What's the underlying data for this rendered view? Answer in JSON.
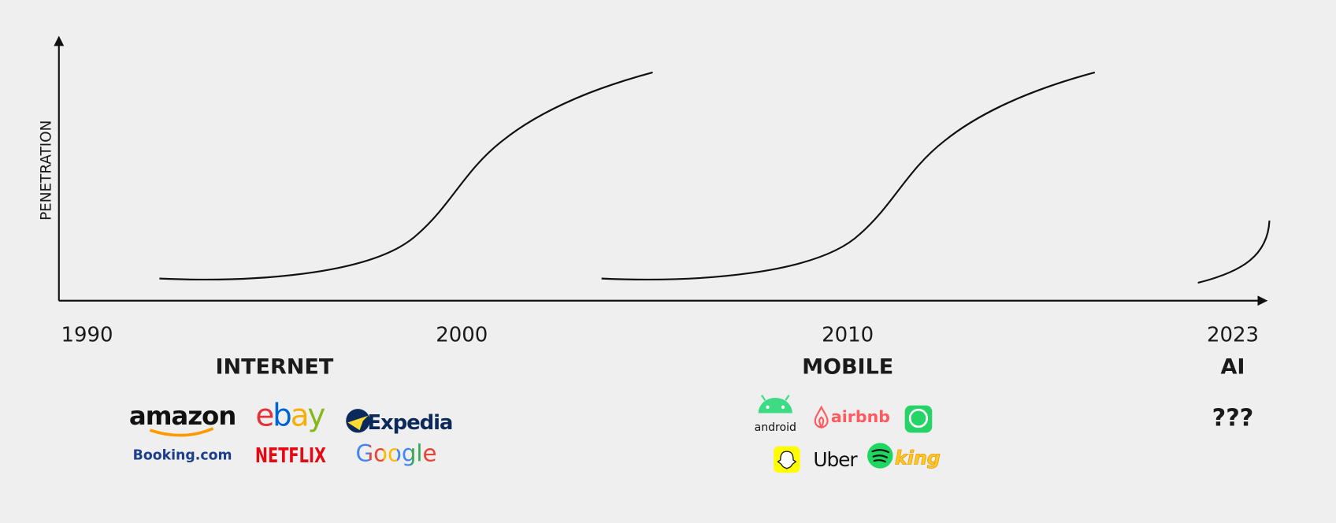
{
  "axis": {
    "y_label": "PENETRATION",
    "x_labels": [
      "1990",
      "2000",
      "2010",
      "2023"
    ]
  },
  "eras": [
    {
      "title": "INTERNET",
      "logos": [
        "amazon",
        "ebay",
        "Expedia",
        "Booking.com",
        "NETFLIX",
        "Google"
      ]
    },
    {
      "title": "MOBILE",
      "logos": [
        "android",
        "airbnb",
        "Uber",
        "king"
      ]
    },
    {
      "title": "AI",
      "placeholder": "???"
    }
  ]
}
